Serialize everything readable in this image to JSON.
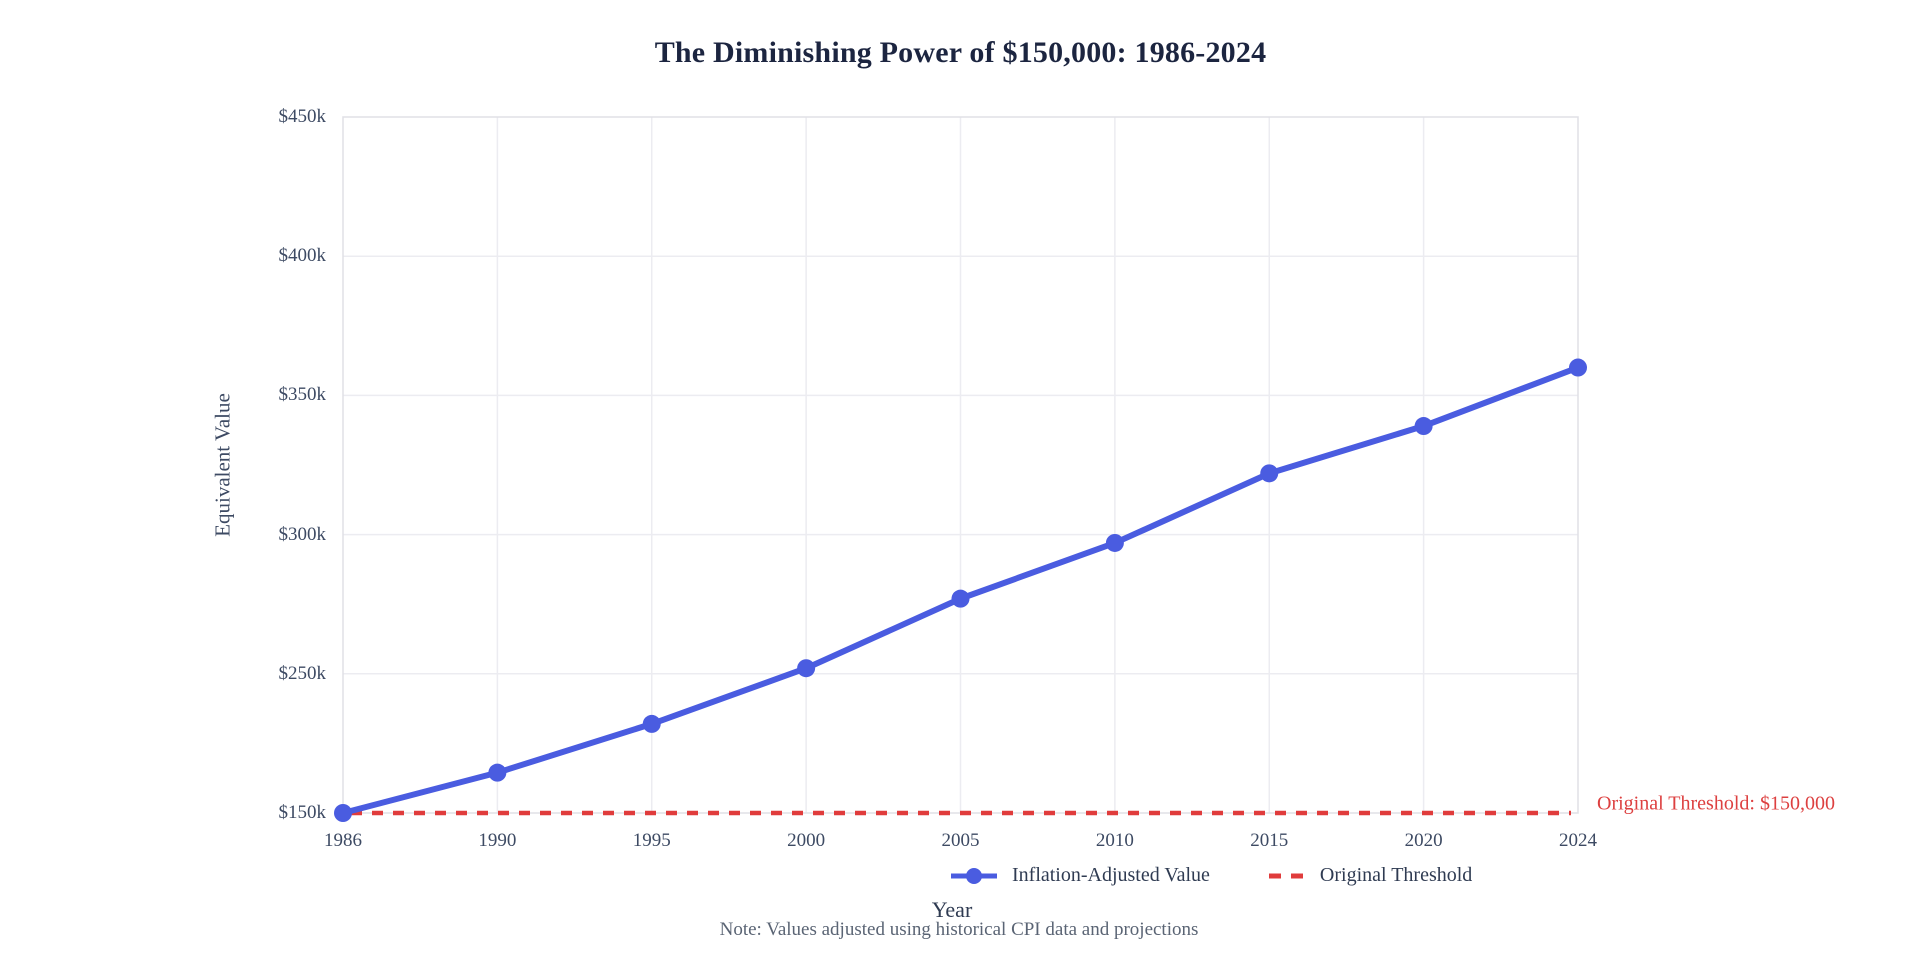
{
  "chart_data": {
    "type": "line",
    "title": "The Diminishing Power of $150,000: 1986-2024",
    "xlabel": "Year",
    "ylabel": "Equivalent Value",
    "categories": [
      "1986",
      "1990",
      "1995",
      "2000",
      "2005",
      "2010",
      "2015",
      "2020",
      "2024"
    ],
    "series": [
      {
        "name": "Inflation-Adjusted Value",
        "style": "solid-markers",
        "color": "#4a5ce0",
        "values": [
          150000,
          179000,
          214000,
          252000,
          277000,
          297000,
          322000,
          339000,
          360000
        ]
      },
      {
        "name": "Original Threshold",
        "style": "dashed",
        "color": "#e03c3c",
        "values": [
          150000,
          150000,
          150000,
          150000,
          150000,
          150000,
          150000,
          150000,
          150000
        ]
      }
    ],
    "y_ticks": [
      {
        "label": "$450k",
        "value": 450000
      },
      {
        "label": "$400k",
        "value": 400000
      },
      {
        "label": "$350k",
        "value": 350000
      },
      {
        "label": "$300k",
        "value": 300000
      },
      {
        "label": "$250k",
        "value": 250000
      },
      {
        "label": "$150k",
        "value": 150000
      }
    ],
    "grid": true,
    "legend_position": "bottom",
    "annotation": "Original Threshold: $150,000",
    "note": "Note: Values adjusted using historical CPI data and projections"
  },
  "colors": {
    "line_blue": "#4a5ce0",
    "threshold_red": "#e03c3c",
    "annotation_red": "#dd4040",
    "grid": "#ececf1",
    "plot_border": "#e0e0e6",
    "title_text": "#1c2540",
    "tick_text": "#3d4a63",
    "note_text": "#5a6474"
  }
}
